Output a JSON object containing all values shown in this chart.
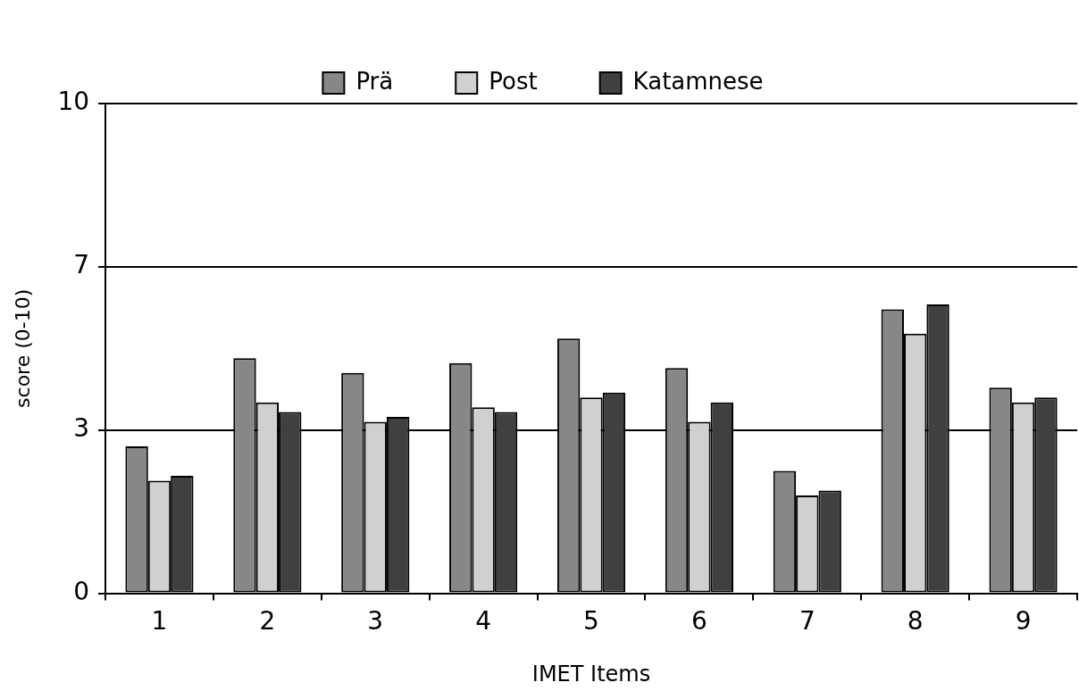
{
  "chart_data": {
    "type": "bar",
    "xlabel": "IMET Items",
    "ylabel": "score (0-10)",
    "categories": [
      "1",
      "2",
      "3",
      "4",
      "5",
      "6",
      "7",
      "8",
      "9"
    ],
    "series": [
      {
        "name": "Prä",
        "color": "#878787",
        "values": [
          3.0,
          4.8,
          4.5,
          4.7,
          5.2,
          4.6,
          2.5,
          5.8,
          4.2
        ]
      },
      {
        "name": "Post",
        "color": "#d0d0d0",
        "values": [
          2.3,
          3.9,
          3.5,
          3.8,
          4.0,
          3.5,
          2.0,
          5.3,
          3.9
        ]
      },
      {
        "name": "Katamnese",
        "color": "#404040",
        "values": [
          2.4,
          3.7,
          3.6,
          3.7,
          4.1,
          3.9,
          2.1,
          5.9,
          4.0
        ]
      }
    ],
    "ylim": [
      0,
      10
    ],
    "yticks": [
      0,
      {
        "value": 3.33,
        "label": "3"
      },
      {
        "value": 6.67,
        "label": "7"
      },
      10
    ],
    "grid": "y",
    "legend": "top"
  }
}
